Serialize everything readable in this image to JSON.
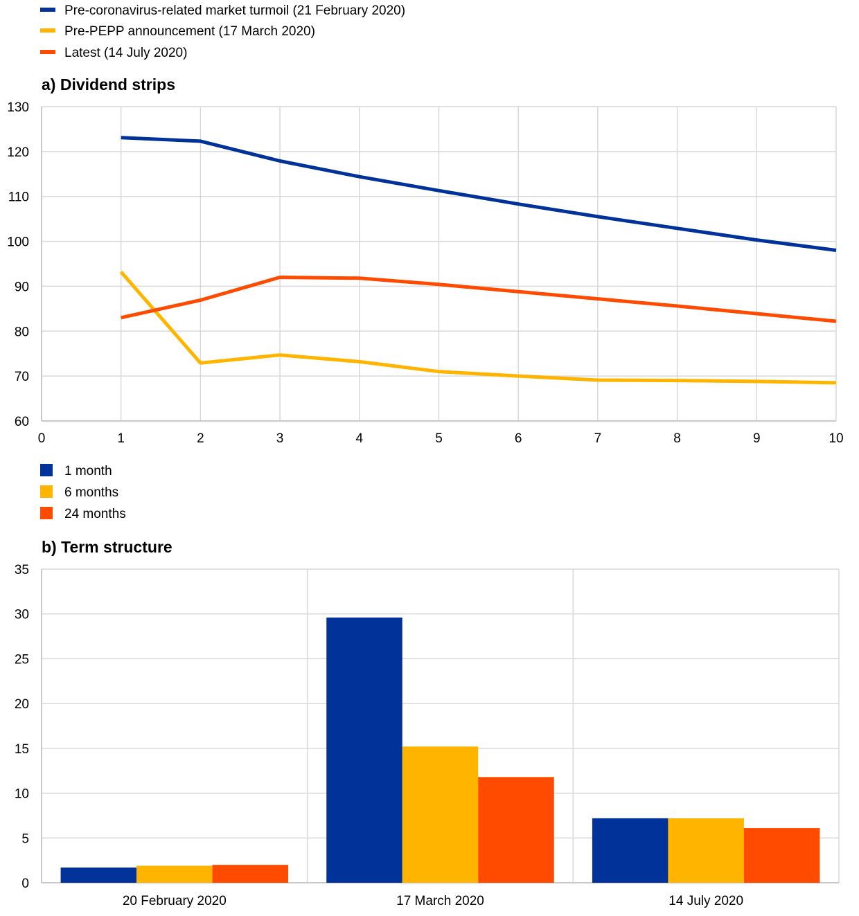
{
  "chart_data": [
    {
      "type": "line",
      "title": "a) Dividend strips",
      "xlabel": "",
      "ylabel": "",
      "xlim": [
        0,
        10
      ],
      "ylim": [
        60,
        130
      ],
      "x_ticks": [
        0,
        1,
        2,
        3,
        4,
        5,
        6,
        7,
        8,
        9,
        10
      ],
      "y_ticks": [
        60,
        70,
        80,
        90,
        100,
        110,
        120,
        130
      ],
      "grid": true,
      "legend_position": "top-left",
      "x": [
        1,
        2,
        3,
        4,
        5,
        6,
        7,
        8,
        9,
        10
      ],
      "series": [
        {
          "name": "Pre-coronavirus-related market turmoil (21 February 2020)",
          "color": "#003299",
          "values": [
            123.1,
            122.3,
            117.9,
            114.4,
            111.3,
            108.3,
            105.5,
            102.9,
            100.3,
            98.0
          ]
        },
        {
          "name": "Pre-PEPP announcement (17 March 2020)",
          "color": "#FFB400",
          "values": [
            93.2,
            72.9,
            74.7,
            73.2,
            71.0,
            70.0,
            69.1,
            69.0,
            68.8,
            68.5
          ]
        },
        {
          "name": "Latest (14 July 2020)",
          "color": "#FF4B00",
          "values": [
            83.0,
            86.9,
            92.0,
            91.8,
            90.4,
            88.8,
            87.2,
            85.6,
            83.9,
            82.2
          ]
        }
      ]
    },
    {
      "type": "bar",
      "title": "b) Term structure",
      "xlabel": "",
      "ylabel": "",
      "ylim": [
        0,
        35
      ],
      "y_ticks": [
        0,
        5,
        10,
        15,
        20,
        25,
        30,
        35
      ],
      "grid": true,
      "legend_position": "top-left",
      "categories": [
        "20 February 2020",
        "17 March 2020",
        "14 July 2020"
      ],
      "series": [
        {
          "name": "1 month",
          "color": "#003299",
          "values": [
            1.7,
            29.6,
            7.2
          ]
        },
        {
          "name": "6 months",
          "color": "#FFB400",
          "values": [
            1.9,
            15.2,
            7.2
          ]
        },
        {
          "name": "24 months",
          "color": "#FF4B00",
          "values": [
            2.0,
            11.8,
            6.1
          ]
        }
      ]
    }
  ]
}
